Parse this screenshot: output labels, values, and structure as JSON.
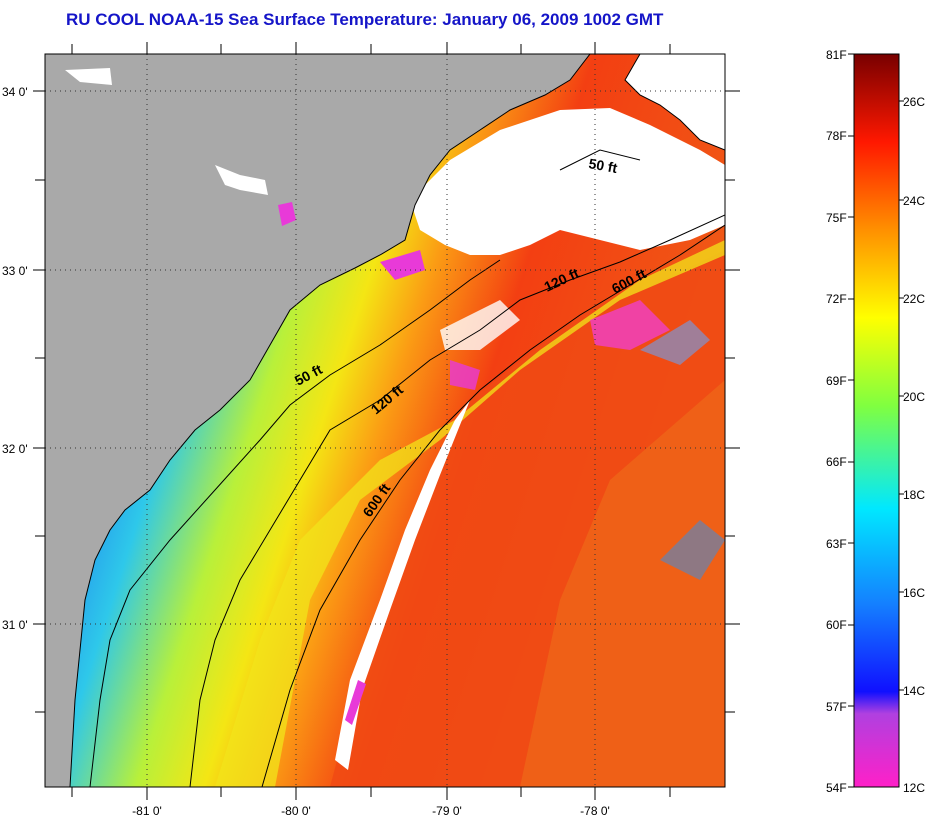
{
  "title": "RU COOL  NOAA-15  Sea Surface Temperature:  January 06, 2009 1002 GMT",
  "map": {
    "lat_labels": [
      "34 0'",
      "33 0'",
      "32 0'",
      "31 0'"
    ],
    "lon_labels": [
      "-81 0'",
      "-80 0'",
      "-79 0'",
      "-78 0'"
    ],
    "contour_labels": [
      "50 ft",
      "120 ft",
      "600 ft",
      "50 ft",
      "120 ft",
      "600 ft"
    ]
  },
  "colorbar": {
    "fahrenheit_labels": [
      "81F",
      "78F",
      "75F",
      "72F",
      "69F",
      "66F",
      "63F",
      "60F",
      "57F",
      "54F"
    ],
    "celsius_labels": [
      "26C",
      "24C",
      "22C",
      "20C",
      "18C",
      "16C",
      "14C",
      "12C"
    ]
  },
  "colors": {
    "title": "#1515c8",
    "land": "#a9a9a9",
    "cloud": "#ffffff",
    "frame": "#000000"
  }
}
